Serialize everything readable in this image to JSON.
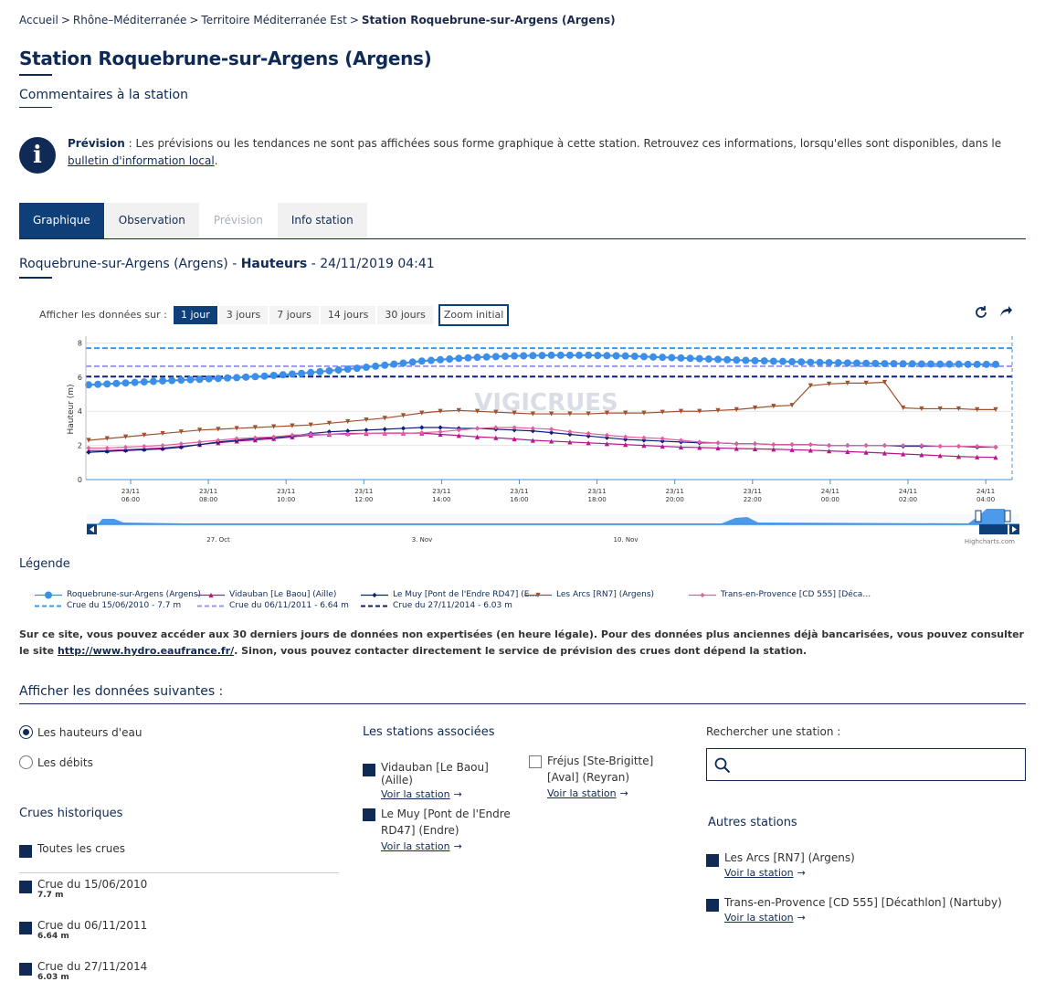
{
  "breadcrumb": {
    "items": [
      "Accueil",
      "Rhône–Méditerranée",
      "Territoire Méditerranée Est"
    ],
    "current": "Station Roquebrune-sur-Argens (Argens)",
    "separator": ">"
  },
  "page": {
    "title": "Station Roquebrune-sur-Argens (Argens)",
    "comments_link": "Commentaires à la station"
  },
  "info": {
    "label": "Prévision",
    "text": " : Les prévisions ou les tendances ne sont pas affichées sous forme graphique à cette station. Retrouvez ces informations, lorsqu'elles sont disponibles, dans le ",
    "link": "bulletin d'information local",
    "end": "."
  },
  "tabs": [
    {
      "label": "Graphique",
      "state": "active"
    },
    {
      "label": "Observation",
      "state": "normal"
    },
    {
      "label": "Prévision",
      "state": "disabled"
    },
    {
      "label": "Info station",
      "state": "normal"
    }
  ],
  "chart_heading": {
    "station": "Roquebrune-sur-Argens (Argens)",
    "dash1": " - ",
    "measure": "Hauteurs",
    "dash2": " - ",
    "date": "24/11/2019 04:41"
  },
  "range_selector": {
    "label": "Afficher les données sur :",
    "buttons": [
      "1 jour",
      "3 jours",
      "7 jours",
      "14 jours",
      "30 jours"
    ],
    "active": "1 jour",
    "zoom_reset": "Zoom initial"
  },
  "icons": {
    "refresh": "refresh-icon",
    "share": "share-icon",
    "info": "info-icon",
    "search": "search-icon"
  },
  "chart_data": {
    "type": "line",
    "ylabel": "Hauteur (m)",
    "ylim": [
      0,
      8.4
    ],
    "yticks": [
      0,
      2,
      4,
      6,
      8
    ],
    "x_ticks": [
      "23/11 06:00",
      "23/11 08:00",
      "23/11 10:00",
      "23/11 12:00",
      "23/11 14:00",
      "23/11 16:00",
      "23/11 18:00",
      "23/11 20:00",
      "23/11 22:00",
      "24/11 00:00",
      "24/11 02:00",
      "24/11 04:00"
    ],
    "watermark": "VIGICRUES",
    "credit": "Highcharts.com",
    "navigator_labels": [
      "27. Oct",
      "3. Nov",
      "10. Nov"
    ],
    "series": [
      {
        "name": "Roquebrune-sur-Argens (Argens)",
        "color": "#3b8fe8",
        "marker": "circle",
        "x": [
          0,
          1,
          2,
          3,
          4,
          5,
          6,
          7,
          8,
          9,
          10,
          11,
          12,
          13,
          14,
          15,
          16,
          17,
          18,
          19,
          20,
          21,
          22,
          23,
          24,
          25,
          26,
          27,
          28,
          29,
          30,
          31,
          32,
          33,
          34,
          35,
          36,
          37,
          38,
          39,
          40,
          41,
          42,
          43,
          44,
          45,
          46,
          47,
          48,
          49,
          50,
          51,
          52,
          53,
          54,
          55,
          56,
          57,
          58,
          59,
          60,
          61,
          62,
          63,
          64,
          65,
          66,
          67,
          68,
          69,
          70,
          71,
          72,
          73,
          74,
          75,
          76,
          77,
          78,
          79,
          80,
          81,
          82,
          83,
          84,
          85,
          86,
          87,
          88,
          89,
          90,
          91,
          92,
          93,
          94,
          95,
          96,
          97,
          98
        ],
        "values": [
          5.55,
          5.58,
          5.6,
          5.63,
          5.66,
          5.69,
          5.72,
          5.75,
          5.78,
          5.8,
          5.83,
          5.85,
          5.87,
          5.9,
          5.92,
          5.95,
          5.97,
          6.0,
          6.03,
          6.06,
          6.1,
          6.14,
          6.18,
          6.22,
          6.27,
          6.32,
          6.37,
          6.42,
          6.47,
          6.52,
          6.58,
          6.64,
          6.7,
          6.76,
          6.82,
          6.88,
          6.94,
          6.98,
          7.02,
          7.06,
          7.1,
          7.13,
          7.16,
          7.18,
          7.2,
          7.22,
          7.24,
          7.25,
          7.26,
          7.27,
          7.28,
          7.28,
          7.28,
          7.28,
          7.28,
          7.27,
          7.26,
          7.25,
          7.24,
          7.22,
          7.2,
          7.18,
          7.16,
          7.14,
          7.12,
          7.1,
          7.08,
          7.06,
          7.04,
          7.02,
          7.0,
          6.98,
          6.96,
          6.95,
          6.93,
          6.92,
          6.9,
          6.89,
          6.87,
          6.86,
          6.85,
          6.84,
          6.83,
          6.82,
          6.81,
          6.8,
          6.79,
          6.79,
          6.78,
          6.78,
          6.77,
          6.77,
          6.76,
          6.76,
          6.76,
          6.75,
          6.75,
          6.75,
          6.75
        ]
      },
      {
        "name": "Vidauban [Le Baou] (Aille)",
        "color": "#b5178f",
        "marker": "triangle",
        "x": [
          0,
          2,
          4,
          6,
          8,
          10,
          12,
          14,
          16,
          18,
          20,
          22,
          24,
          26,
          28,
          30,
          32,
          34,
          36,
          38,
          40,
          42,
          44,
          46,
          48,
          50,
          52,
          54,
          56,
          58,
          60,
          62,
          64,
          66,
          68,
          70,
          72,
          74,
          76,
          78,
          80,
          82,
          84,
          86,
          88,
          90,
          92,
          94,
          96,
          98
        ],
        "values": [
          1.7,
          1.7,
          1.75,
          1.8,
          1.85,
          1.95,
          2.05,
          2.15,
          2.25,
          2.32,
          2.4,
          2.5,
          2.6,
          2.65,
          2.7,
          2.7,
          2.72,
          2.72,
          2.72,
          2.65,
          2.58,
          2.5,
          2.45,
          2.38,
          2.3,
          2.25,
          2.2,
          2.15,
          2.1,
          2.05,
          2.0,
          1.95,
          1.9,
          1.88,
          1.85,
          1.82,
          1.8,
          1.78,
          1.75,
          1.72,
          1.68,
          1.64,
          1.6,
          1.55,
          1.5,
          1.45,
          1.4,
          1.35,
          1.32,
          1.3
        ]
      },
      {
        "name": "Le Muy [Pont de l'Endre RD47] (E…",
        "color": "#0d1f7a",
        "marker": "diamond",
        "x": [
          0,
          2,
          4,
          6,
          8,
          10,
          12,
          14,
          16,
          18,
          20,
          22,
          24,
          26,
          28,
          30,
          32,
          34,
          36,
          38,
          40,
          42,
          44,
          46,
          48,
          50,
          52,
          54,
          56,
          58,
          60,
          62,
          64,
          66,
          68,
          70,
          72,
          74,
          76,
          78,
          80,
          82,
          84,
          86,
          88,
          90,
          92,
          94,
          96,
          98
        ],
        "values": [
          1.6,
          1.65,
          1.7,
          1.75,
          1.8,
          1.9,
          2.05,
          2.2,
          2.3,
          2.4,
          2.45,
          2.55,
          2.7,
          2.8,
          2.85,
          2.9,
          2.95,
          3.0,
          3.05,
          3.05,
          3.0,
          3.0,
          2.95,
          2.9,
          2.85,
          2.75,
          2.65,
          2.55,
          2.45,
          2.35,
          2.3,
          2.25,
          2.2,
          2.15,
          2.15,
          2.1,
          2.1,
          2.05,
          2.05,
          2.05,
          2.0,
          2.0,
          2.0,
          2.0,
          1.95,
          1.95,
          1.95,
          1.95,
          1.9,
          1.9
        ]
      },
      {
        "name": "Les Arcs [RN7] (Argens)",
        "color": "#a0522d",
        "marker": "triangle-down",
        "x": [
          0,
          2,
          4,
          6,
          8,
          10,
          12,
          14,
          16,
          18,
          20,
          22,
          24,
          26,
          28,
          30,
          32,
          34,
          36,
          38,
          40,
          42,
          44,
          46,
          48,
          50,
          52,
          54,
          56,
          58,
          60,
          62,
          64,
          66,
          68,
          70,
          72,
          74,
          76,
          78,
          80,
          82,
          84,
          86,
          88,
          90,
          92,
          94,
          96,
          98
        ],
        "values": [
          2.3,
          2.4,
          2.5,
          2.6,
          2.7,
          2.8,
          2.9,
          2.95,
          3.0,
          3.05,
          3.1,
          3.15,
          3.2,
          3.3,
          3.4,
          3.5,
          3.6,
          3.75,
          3.9,
          4.0,
          4.05,
          4.0,
          3.95,
          3.9,
          3.85,
          3.85,
          3.85,
          3.85,
          3.9,
          3.9,
          3.9,
          3.95,
          4.0,
          4.0,
          4.05,
          4.1,
          4.2,
          4.3,
          4.35,
          5.5,
          5.6,
          5.65,
          5.65,
          5.7,
          4.2,
          4.15,
          4.15,
          4.15,
          4.1,
          4.1
        ]
      },
      {
        "name": "Trans-en-Provence [CD 555] [Déca…",
        "color": "#e0609e",
        "marker": "diamond",
        "x": [
          0,
          2,
          4,
          6,
          8,
          10,
          12,
          14,
          16,
          18,
          20,
          22,
          24,
          26,
          28,
          30,
          32,
          34,
          36,
          38,
          40,
          42,
          44,
          46,
          48,
          50,
          52,
          54,
          56,
          58,
          60,
          62,
          64,
          66,
          68,
          70,
          72,
          74,
          76,
          78,
          80,
          82,
          84,
          86,
          88,
          90,
          92,
          94,
          96,
          98
        ],
        "values": [
          1.85,
          1.85,
          1.9,
          1.95,
          2.0,
          2.1,
          2.2,
          2.3,
          2.4,
          2.45,
          2.5,
          2.6,
          2.65,
          2.65,
          2.65,
          2.7,
          2.7,
          2.7,
          2.75,
          2.8,
          2.9,
          3.0,
          3.05,
          3.05,
          3.0,
          2.95,
          2.8,
          2.7,
          2.6,
          2.5,
          2.45,
          2.4,
          2.3,
          2.2,
          2.15,
          2.1,
          2.1,
          2.05,
          2.05,
          2.05,
          2.0,
          2.0,
          2.0,
          2.0,
          2.0,
          2.0,
          1.95,
          1.95,
          1.95,
          1.9
        ]
      }
    ],
    "thresholds": [
      {
        "name": "Crue du 15/06/2010 - 7.7 m",
        "value": 7.7,
        "color": "#3b9be8"
      },
      {
        "name": "Crue du 06/11/2011 - 6.64 m",
        "value": 6.64,
        "color": "#9a97ea"
      },
      {
        "name": "Crue du 27/11/2014 - 6.03 m",
        "value": 6.03,
        "color": "#0d1f7a"
      }
    ]
  },
  "legend": {
    "title": "Légende"
  },
  "notice": {
    "text": "Sur ce site, vous pouvez accéder aux 30 derniers jours de données non expertisées (en heure légale). Pour des données plus anciennes déjà bancarisées, vous pouvez consulter le site ",
    "link": "http://www.hydro.eaufrance.fr/",
    "end": ". Sinon, vous pouvez contacter directement le service de prévision des crues dont dépend la station."
  },
  "display": {
    "title": "Afficher les données suivantes :",
    "radios": [
      {
        "label": "Les hauteurs d'eau",
        "checked": true
      },
      {
        "label": "Les débits",
        "checked": false
      }
    ],
    "historic": {
      "title": "Crues historiques",
      "all": "Toutes les crues",
      "items": [
        {
          "label": "Crue du 15/06/2010",
          "value": "7.7 m"
        },
        {
          "label": "Crue du 06/11/2011",
          "value": "6.64 m"
        },
        {
          "label": "Crue du 27/11/2014",
          "value": "6.03 m"
        }
      ]
    },
    "associated": {
      "title": "Les stations associées",
      "items": [
        {
          "label": "Vidauban [Le Baou] (Aille)",
          "link": "Voir la station",
          "checked": true
        },
        {
          "label": "Fréjus [Ste-Brigitte] [Aval] (Reyran)",
          "link": "Voir la station",
          "checked": false
        },
        {
          "label": "Le Muy [Pont de l'Endre RD47] (Endre)",
          "link": "Voir la station",
          "checked": true
        }
      ]
    },
    "search": {
      "label": "Rechercher une station :",
      "placeholder": ""
    },
    "others": {
      "title": "Autres stations",
      "items": [
        {
          "label": "Les Arcs [RN7] (Argens)",
          "link": "Voir la station",
          "checked": true
        },
        {
          "label": "Trans-en-Provence [CD 555] [Décathlon] (Nartuby)",
          "link": "Voir la station",
          "checked": true
        }
      ]
    }
  }
}
